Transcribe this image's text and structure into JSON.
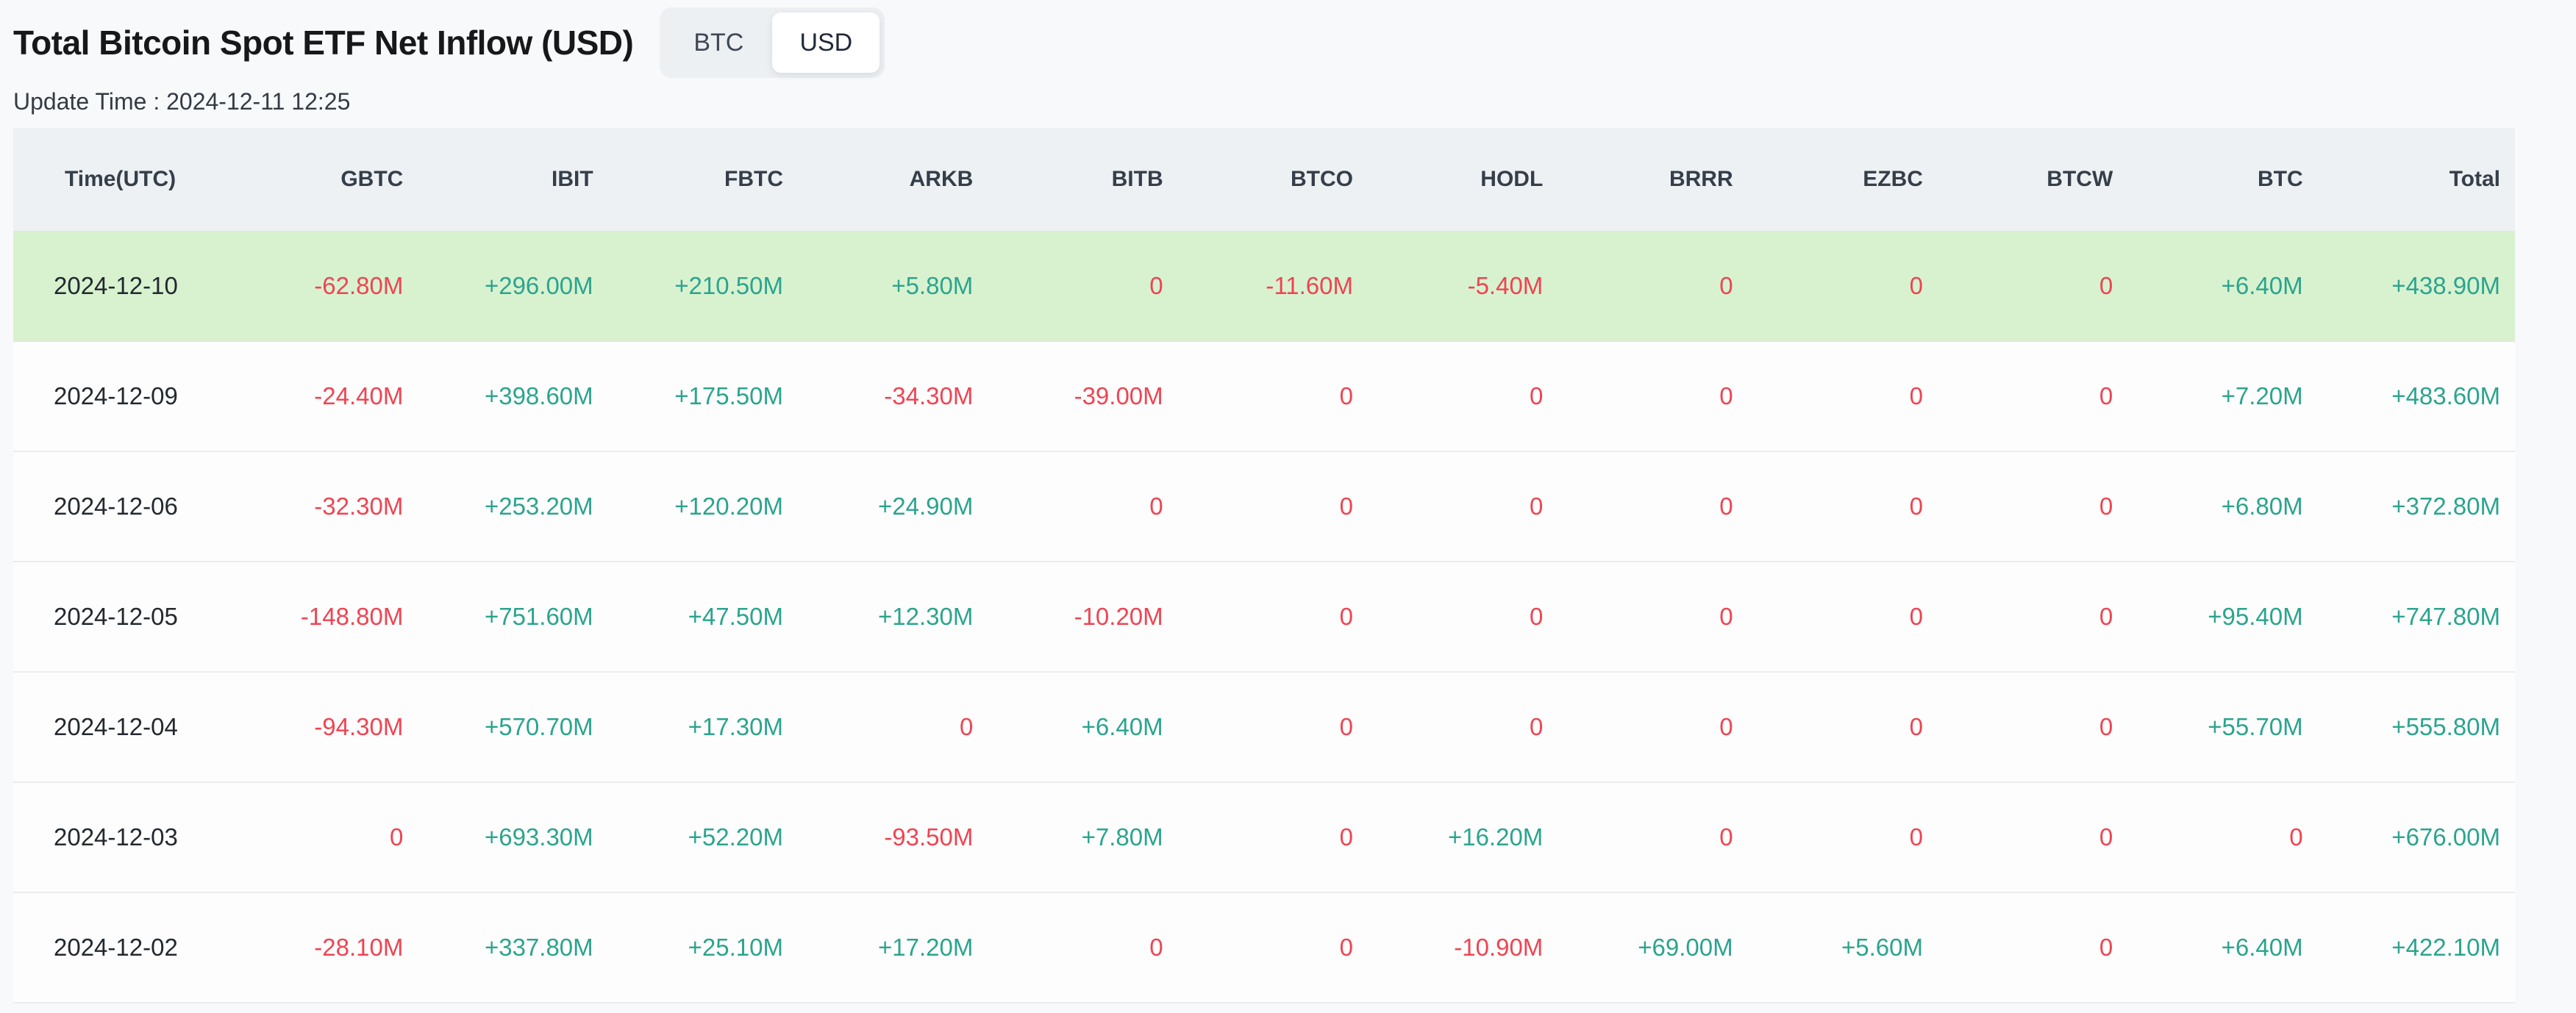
{
  "page": {
    "title": "Total Bitcoin Spot ETF Net Inflow (USD)",
    "update_time": "Update Time : 2024-12-11 12:25"
  },
  "toggle": {
    "options": [
      "BTC",
      "USD"
    ],
    "active": "USD"
  },
  "colors": {
    "positive": "#2ba48e",
    "negative": "#ef4452",
    "highlight_row_bg": "#d8f2d0",
    "header_bg": "#edf1f4",
    "page_bg": "#f8f9fa"
  },
  "table": {
    "columns": [
      "Time(UTC)",
      "GBTC",
      "IBIT",
      "FBTC",
      "ARKB",
      "BITB",
      "BTCO",
      "HODL",
      "BRRR",
      "EZBC",
      "BTCW",
      "BTC",
      "Total"
    ],
    "rows": [
      {
        "date": "2024-12-10",
        "highlight": true,
        "values": [
          "-62.80M",
          "+296.00M",
          "+210.50M",
          "+5.80M",
          "0",
          "-11.60M",
          "-5.40M",
          "0",
          "0",
          "0",
          "+6.40M",
          "+438.90M"
        ]
      },
      {
        "date": "2024-12-09",
        "highlight": false,
        "values": [
          "-24.40M",
          "+398.60M",
          "+175.50M",
          "-34.30M",
          "-39.00M",
          "0",
          "0",
          "0",
          "0",
          "0",
          "+7.20M",
          "+483.60M"
        ]
      },
      {
        "date": "2024-12-06",
        "highlight": false,
        "values": [
          "-32.30M",
          "+253.20M",
          "+120.20M",
          "+24.90M",
          "0",
          "0",
          "0",
          "0",
          "0",
          "0",
          "+6.80M",
          "+372.80M"
        ]
      },
      {
        "date": "2024-12-05",
        "highlight": false,
        "values": [
          "-148.80M",
          "+751.60M",
          "+47.50M",
          "+12.30M",
          "-10.20M",
          "0",
          "0",
          "0",
          "0",
          "0",
          "+95.40M",
          "+747.80M"
        ]
      },
      {
        "date": "2024-12-04",
        "highlight": false,
        "values": [
          "-94.30M",
          "+570.70M",
          "+17.30M",
          "0",
          "+6.40M",
          "0",
          "0",
          "0",
          "0",
          "0",
          "+55.70M",
          "+555.80M"
        ]
      },
      {
        "date": "2024-12-03",
        "highlight": false,
        "values": [
          "0",
          "+693.30M",
          "+52.20M",
          "-93.50M",
          "+7.80M",
          "0",
          "+16.20M",
          "0",
          "0",
          "0",
          "0",
          "+676.00M"
        ]
      },
      {
        "date": "2024-12-02",
        "highlight": false,
        "values": [
          "-28.10M",
          "+337.80M",
          "+25.10M",
          "+17.20M",
          "0",
          "0",
          "-10.90M",
          "+69.00M",
          "+5.60M",
          "0",
          "+6.40M",
          "+422.10M"
        ]
      }
    ]
  }
}
